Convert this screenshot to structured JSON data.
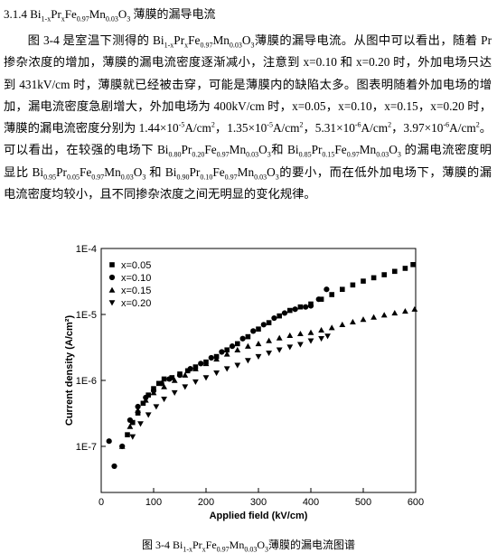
{
  "heading": [
    "3.1.4 Bi",
    {
      "sub": "1-x"
    },
    "Pr",
    {
      "sub": "x"
    },
    "Fe",
    {
      "sub": "0.97"
    },
    "Mn",
    {
      "sub": "0.03"
    },
    "O",
    {
      "sub": "3"
    },
    " 薄膜的漏导电流"
  ],
  "paragraph": [
    "图 3-4 是室温下测得的 Bi",
    {
      "sub": "1-x"
    },
    "Pr",
    {
      "sub": "x"
    },
    "Fe",
    {
      "sub": "0.97"
    },
    "Mn",
    {
      "sub": "0.03"
    },
    "O",
    {
      "sub": "3"
    },
    "薄膜的漏导电流。从图中可以看出，随着 Pr 掺杂浓度的增加，薄膜的漏电流密度逐渐减小，注意到 x=0.10 和 x=0.20 时，外加电场只达到 431kV/cm 时，薄膜就已经被击穿，可能是薄膜内的缺陷太多。图表明随着外加电场的增加，漏电流密度急剧增大，外加电场为 400kV/cm 时，x=0.05，x=0.10，x=0.15，x=0.20 时，薄膜的漏电流密度分别为 1.44×10",
    {
      "sup": "-5"
    },
    "A/cm",
    {
      "sup": "2"
    },
    "，1.35×10",
    {
      "sup": "-5"
    },
    "A/cm",
    {
      "sup": "2"
    },
    "，5.31×10",
    {
      "sup": "-6"
    },
    "A/cm",
    {
      "sup": "2"
    },
    "，3.97×10",
    {
      "sup": "-6"
    },
    "A/cm",
    {
      "sup": "2"
    },
    "。可以看出，在较强的电场下 Bi",
    {
      "sub": "0.80"
    },
    "Pr",
    {
      "sub": "0.20"
    },
    "Fe",
    {
      "sub": "0.97"
    },
    "Mn",
    {
      "sub": "0.03"
    },
    "O",
    {
      "sub": "3"
    },
    "和 Bi",
    {
      "sub": "0.85"
    },
    "Pr",
    {
      "sub": "0.15"
    },
    "Fe",
    {
      "sub": "0.97"
    },
    "Mn",
    {
      "sub": "0.03"
    },
    "O",
    {
      "sub": "3"
    },
    " 的漏电流密度明显比 Bi",
    {
      "sub": "0.95"
    },
    "Pr",
    {
      "sub": "0.05"
    },
    "Fe",
    {
      "sub": "0.97"
    },
    "Mn",
    {
      "sub": "0.03"
    },
    "O",
    {
      "sub": "3"
    },
    " 和 Bi",
    {
      "sub": "0.90"
    },
    "Pr",
    {
      "sub": "0.10"
    },
    "Fe",
    {
      "sub": "0.97"
    },
    "Mn",
    {
      "sub": "0.03"
    },
    "O",
    {
      "sub": "3"
    },
    "的要小，而在低外加电场下，薄膜的漏电流密度均较小，且不同掺杂浓度之间无明显的变化规律。"
  ],
  "chart_data": {
    "type": "scatter",
    "x_label": "Applied field (kV/cm)",
    "y_label": "Current density (A/cm²)",
    "xlim": [
      0,
      600
    ],
    "xticks": [
      0,
      100,
      200,
      300,
      400,
      500,
      600
    ],
    "ylim": [
      2e-08,
      0.0001
    ],
    "y_log": true,
    "yticks": [
      {
        "value": 1e-07,
        "label": "1E-7"
      },
      {
        "value": 1e-06,
        "label": "1E-6"
      },
      {
        "value": 1e-05,
        "label": "1E-5"
      },
      {
        "value": 0.0001,
        "label": "1E-4"
      }
    ],
    "legend": "upper left",
    "series": [
      {
        "name": "x=0.05",
        "marker": "square",
        "color": "#000000",
        "x": [
          50,
          60,
          70,
          80,
          90,
          100,
          110,
          120,
          135,
          150,
          165,
          180,
          200,
          220,
          240,
          260,
          280,
          300,
          320,
          340,
          360,
          380,
          400,
          420,
          440,
          460,
          480,
          500,
          520,
          540,
          560,
          580,
          595
        ],
        "values": [
          1.5e-07,
          2.3e-07,
          3.2e-07,
          4.5e-07,
          6e-07,
          7.5e-07,
          9e-07,
          1.05e-06,
          1.1e-06,
          1.25e-06,
          1.4e-06,
          1.6e-06,
          1.9e-06,
          2.3e-06,
          2.9e-06,
          3.6e-06,
          4.6e-06,
          6e-06,
          7.5e-06,
          9.5e-06,
          1.15e-05,
          1.3e-05,
          1.44e-05,
          1.7e-05,
          2e-05,
          2.4e-05,
          2.8e-05,
          3.2e-05,
          3.6e-05,
          4e-05,
          4.5e-05,
          5e-05,
          5.7e-05
        ]
      },
      {
        "name": "x=0.10",
        "marker": "circle",
        "color": "#000000",
        "x": [
          15,
          25,
          40,
          55,
          70,
          85,
          100,
          115,
          130,
          150,
          170,
          190,
          210,
          230,
          250,
          270,
          290,
          310,
          330,
          350,
          370,
          390,
          400,
          415,
          430
        ],
        "values": [
          1.2e-07,
          5e-08,
          1e-07,
          2.5e-07,
          4e-07,
          5.5e-07,
          7e-07,
          9e-07,
          1.05e-06,
          1.2e-06,
          1.5e-06,
          1.8e-06,
          2.2e-06,
          2.7e-06,
          3.3e-06,
          4.3e-06,
          5.6e-06,
          7e-06,
          8.8e-06,
          1.05e-05,
          1.2e-05,
          1.3e-05,
          1.35e-05,
          1.7e-05,
          2.4e-05
        ]
      },
      {
        "name": "x=0.15",
        "marker": "triangle-up",
        "color": "#000000",
        "x": [
          40,
          55,
          70,
          85,
          100,
          120,
          140,
          160,
          180,
          200,
          220,
          240,
          260,
          280,
          300,
          320,
          340,
          360,
          380,
          400,
          420,
          440,
          460,
          480,
          500,
          520,
          540,
          560,
          580,
          598
        ],
        "values": [
          1e-07,
          2e-07,
          3.5e-07,
          5e-07,
          6.5e-07,
          8e-07,
          1e-06,
          1.2e-06,
          1.5e-06,
          1.8e-06,
          2.1e-06,
          2.5e-06,
          2.9e-06,
          3.3e-06,
          3.6e-06,
          4e-06,
          4.4e-06,
          4.8e-06,
          5.1e-06,
          5.31e-06,
          5.8e-06,
          6.3e-06,
          7e-06,
          7.7e-06,
          8.4e-06,
          9.1e-06,
          9.8e-06,
          1.05e-05,
          1.12e-05,
          1.2e-05
        ]
      },
      {
        "name": "x=0.20",
        "marker": "triangle-down",
        "color": "#000000",
        "x": [
          60,
          75,
          90,
          105,
          120,
          140,
          160,
          180,
          200,
          220,
          240,
          260,
          280,
          300,
          320,
          340,
          360,
          380,
          400,
          420,
          432
        ],
        "values": [
          1.4e-07,
          2.2e-07,
          3e-07,
          4e-07,
          5.2e-07,
          6.5e-07,
          8e-07,
          9.5e-07,
          1.1e-06,
          1.3e-06,
          1.5e-06,
          1.7e-06,
          2e-06,
          2.3e-06,
          2.6e-06,
          2.9e-06,
          3.2e-06,
          3.5e-06,
          3.97e-06,
          4.3e-06,
          4.7e-06
        ]
      }
    ]
  },
  "caption": [
    "图 3-4 Bi",
    {
      "sub": "1-x"
    },
    "Pr",
    {
      "sub": "x"
    },
    "Fe",
    {
      "sub": "0.97"
    },
    "Mn",
    {
      "sub": "0.03"
    },
    "O",
    {
      "sub": "3"
    },
    "薄膜的漏电流图谱"
  ]
}
